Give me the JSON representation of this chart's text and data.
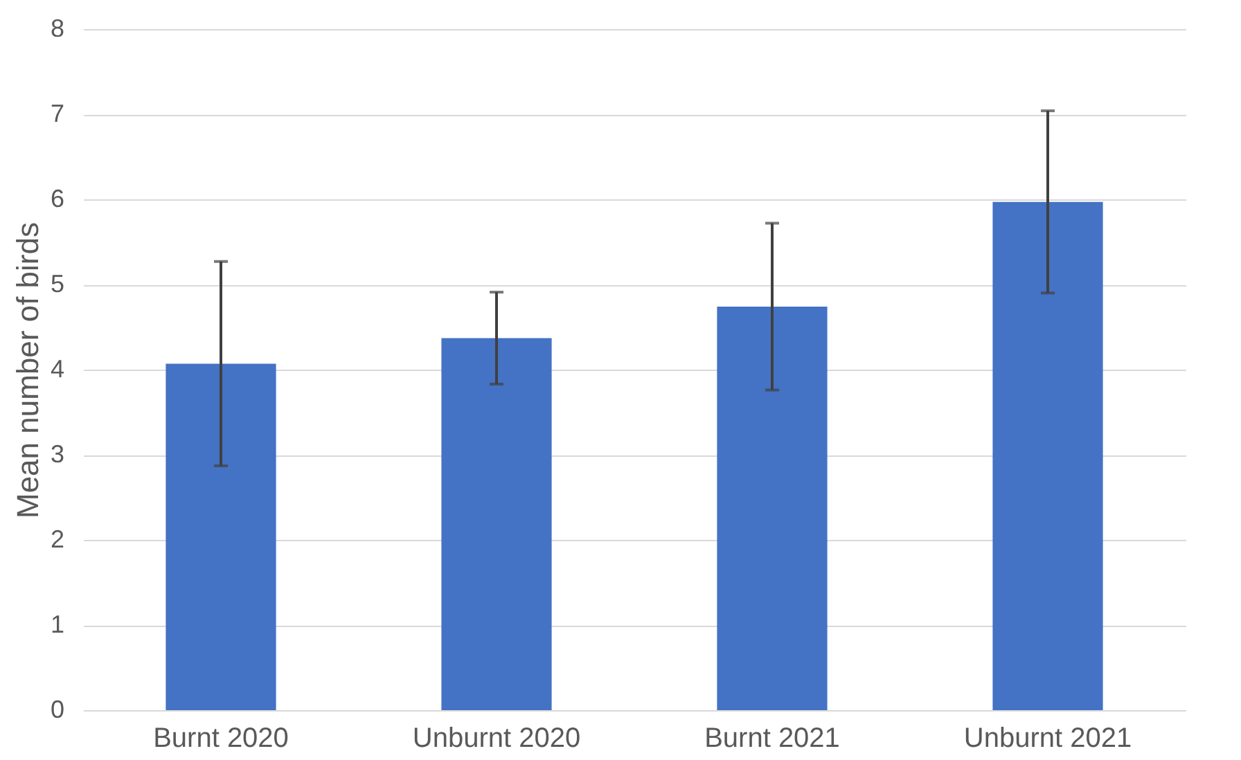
{
  "chart_data": {
    "type": "bar",
    "ylabel": "Mean number of birds",
    "categories": [
      "Burnt 2020",
      "Unburnt 2020",
      "Burnt 2021",
      "Unburnt 2021"
    ],
    "values": [
      4.07,
      4.37,
      4.74,
      5.97
    ],
    "errors": [
      1.2,
      0.54,
      0.98,
      1.07
    ],
    "color": "#4472c4",
    "ylim": [
      0,
      8
    ],
    "yticks": [
      0,
      1,
      2,
      3,
      4,
      5,
      6,
      7,
      8
    ],
    "grid": "y"
  }
}
